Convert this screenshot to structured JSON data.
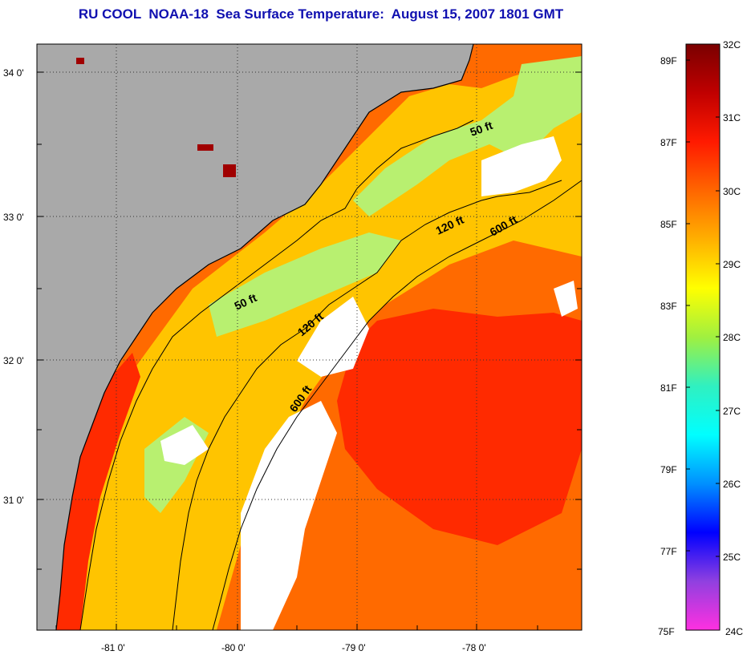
{
  "title": "RU COOL  NOAA-18  Sea Surface Temperature:  August 15, 2007 1801 GMT",
  "map": {
    "latitude_labels": [
      "34 0'",
      "33 0'",
      "32 0'",
      "31 0'"
    ],
    "longitude_labels": [
      "-81 0'",
      "-80 0'",
      "-79 0'",
      "-78 0'"
    ],
    "contour_labels": {
      "c50_north": "50 ft",
      "c50_south": "50 ft",
      "c120_north": "120 ft",
      "c120_south": "120 ft",
      "c600_north": "600 ft",
      "c600_south": "600 ft"
    },
    "colors": {
      "land": "#a9a9a9",
      "cloud": "#ffffff",
      "warm_water": "#ff6a00",
      "hot_water": "#ff2a00",
      "mid_water": "#ffc400",
      "cool_water": "#b8f070",
      "coast_line": "#000000"
    }
  },
  "colorbar": {
    "celsius_labels": [
      "32C",
      "31C",
      "30C",
      "29C",
      "28C",
      "27C",
      "26C",
      "25C",
      "24C"
    ],
    "fahrenheit_labels": [
      "89F",
      "87F",
      "85F",
      "83F",
      "81F",
      "79F",
      "77F",
      "75F"
    ],
    "gradient_colors": [
      "#7a0000",
      "#c00000",
      "#ff1a00",
      "#ff6600",
      "#ffb000",
      "#ffff00",
      "#a0f040",
      "#30f0c0",
      "#00ffff",
      "#0090ff",
      "#0000ff",
      "#9040e0",
      "#ff30e0"
    ]
  }
}
